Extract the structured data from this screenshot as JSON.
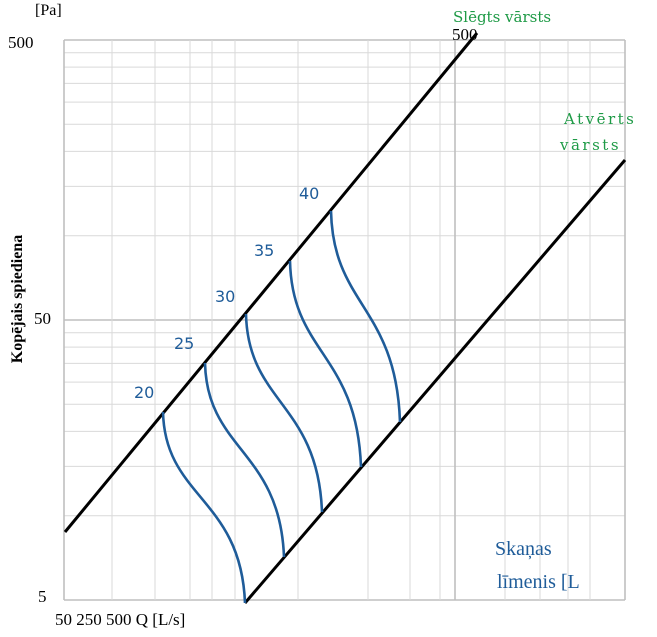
{
  "chart_data": {
    "type": "line",
    "y_unit": "[Pa]",
    "y_axis_label": "Kopējais spiediena",
    "y_scale": "log",
    "y_ticks": [
      "500",
      "50",
      "5"
    ],
    "x_axis_text": "50 250 500 Q [L/s]",
    "top_right_tick": "500",
    "boundary_lines": [
      {
        "name": "Slēgts vārsts"
      },
      {
        "name_line1": "Atvērts",
        "name_line2": "vārsts"
      }
    ],
    "curve_labels": [
      "20",
      "25",
      "30",
      "35",
      "40"
    ],
    "corner_label_line1": "Skaņas",
    "corner_label_line2": "līmenis [L"
  },
  "colors": {
    "boundary": "#000000",
    "curves": "#1f5c99",
    "boundary_labels": "#1e9a46",
    "grid_major": "#bfbfbf",
    "grid_minor": "#d9d9d9"
  }
}
